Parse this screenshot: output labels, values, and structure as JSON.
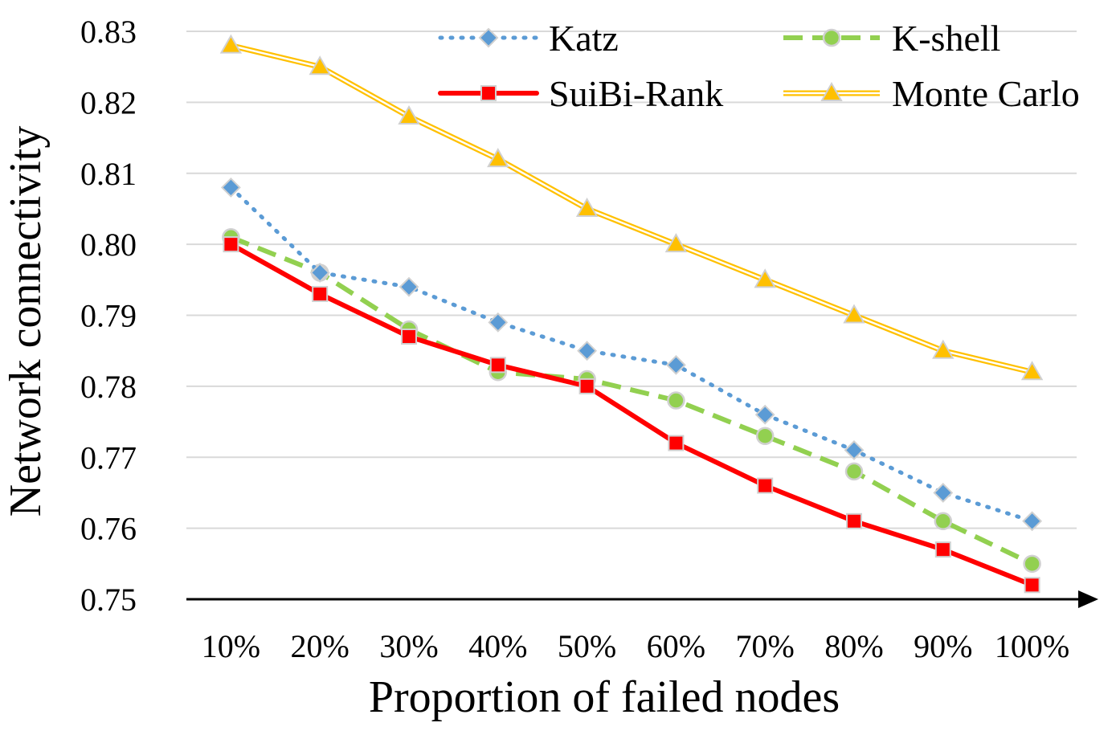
{
  "chart_data": {
    "type": "line",
    "title": "",
    "xlabel": "Proportion of failed nodes",
    "ylabel": "Network connectivity",
    "categories": [
      "10%",
      "20%",
      "30%",
      "40%",
      "50%",
      "60%",
      "70%",
      "80%",
      "90%",
      "100%"
    ],
    "ylim": [
      0.75,
      0.83
    ],
    "yticks": [
      "0.75",
      "0.76",
      "0.77",
      "0.78",
      "0.79",
      "0.80",
      "0.81",
      "0.82",
      "0.83"
    ],
    "grid": true,
    "legend_position": "top-right",
    "series": [
      {
        "name": "Katz",
        "color": "#5B9BD5",
        "line_style": "dotted",
        "marker": "diamond",
        "values": [
          0.808,
          0.796,
          0.794,
          0.789,
          0.785,
          0.783,
          0.776,
          0.771,
          0.765,
          0.761
        ]
      },
      {
        "name": "K-shell",
        "color": "#92D050",
        "line_style": "dashed",
        "marker": "circle",
        "values": [
          0.801,
          0.796,
          0.788,
          0.782,
          0.781,
          0.778,
          0.773,
          0.768,
          0.761,
          0.755
        ]
      },
      {
        "name": "SuiBi-Rank",
        "color": "#FF0000",
        "line_style": "solid",
        "marker": "square",
        "values": [
          0.8,
          0.793,
          0.787,
          0.783,
          0.78,
          0.772,
          0.766,
          0.761,
          0.757,
          0.752
        ]
      },
      {
        "name": "Monte Carlo",
        "color": "#FFC000",
        "line_style": "double",
        "marker": "triangle",
        "values": [
          0.828,
          0.825,
          0.818,
          0.812,
          0.805,
          0.8,
          0.795,
          0.79,
          0.785,
          0.782
        ]
      }
    ]
  }
}
